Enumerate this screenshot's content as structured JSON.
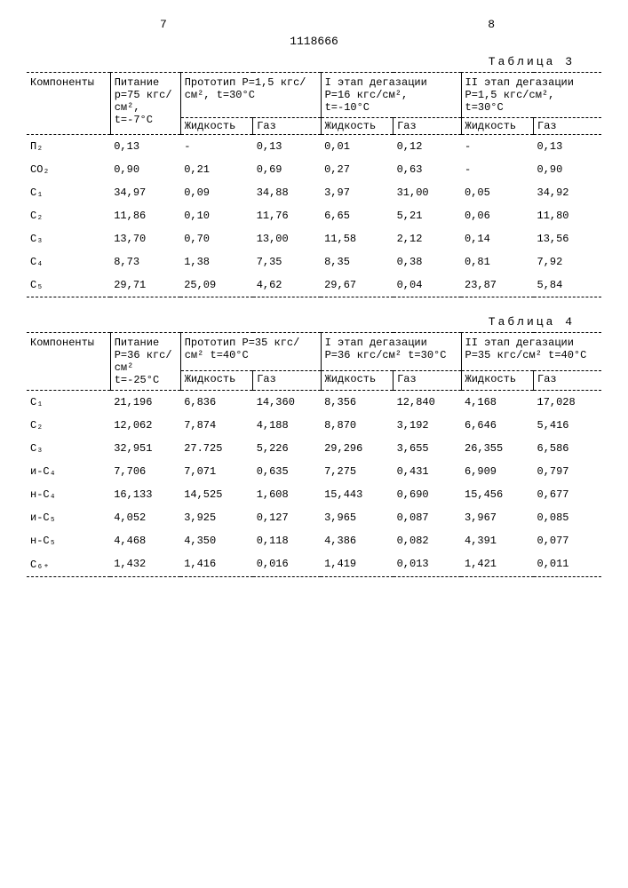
{
  "page": {
    "left_num": "7",
    "doc_num": "1118666",
    "right_num": "8"
  },
  "table3": {
    "title": "Таблица 3",
    "header": {
      "components": "Компоненты",
      "feed": "Питание p=75 кгс/см², t=-7°С",
      "proto": "Прототип P=1,5 кгс/см², t=30°С",
      "stage1": "I этап дегазации P=16 кгс/см², t=-10°С",
      "stage2": "II этап дегазации P=1,5 кгс/см², t=30°С",
      "liquid": "Жидкость",
      "gas": "Газ"
    },
    "rows": [
      {
        "c": "П₂",
        "p": "0,13",
        "pl": "-",
        "pg": "0,13",
        "s1l": "0,01",
        "s1g": "0,12",
        "s2l": "-",
        "s2g": "0,13"
      },
      {
        "c": "CO₂",
        "p": "0,90",
        "pl": "0,21",
        "pg": "0,69",
        "s1l": "0,27",
        "s1g": "0,63",
        "s2l": "-",
        "s2g": "0,90"
      },
      {
        "c": "C₁",
        "p": "34,97",
        "pl": "0,09",
        "pg": "34,88",
        "s1l": "3,97",
        "s1g": "31,00",
        "s2l": "0,05",
        "s2g": "34,92"
      },
      {
        "c": "C₂",
        "p": "11,86",
        "pl": "0,10",
        "pg": "11,76",
        "s1l": "6,65",
        "s1g": "5,21",
        "s2l": "0,06",
        "s2g": "11,80"
      },
      {
        "c": "C₃",
        "p": "13,70",
        "pl": "0,70",
        "pg": "13,00",
        "s1l": "11,58",
        "s1g": "2,12",
        "s2l": "0,14",
        "s2g": "13,56"
      },
      {
        "c": "C₄",
        "p": "8,73",
        "pl": "1,38",
        "pg": "7,35",
        "s1l": "8,35",
        "s1g": "0,38",
        "s2l": "0,81",
        "s2g": "7,92"
      },
      {
        "c": "C₅",
        "p": "29,71",
        "pl": "25,09",
        "pg": "4,62",
        "s1l": "29,67",
        "s1g": "0,04",
        "s2l": "23,87",
        "s2g": "5,84"
      }
    ]
  },
  "table4": {
    "title": "Таблица 4",
    "header": {
      "components": "Компоненты",
      "feed": "Питание P=36 кгс/см² t=-25°С",
      "proto": "Прототип P=35 кгс/см² t=40°С",
      "stage1": "I этап дегазации P=36 кгс/см² t=30°С",
      "stage2": "II этап дегазации P=35 кгс/см² t=40°С",
      "liquid": "Жидкость",
      "gas": "Газ"
    },
    "rows": [
      {
        "c": "C₁",
        "p": "21,196",
        "pl": "6,836",
        "pg": "14,360",
        "s1l": "8,356",
        "s1g": "12,840",
        "s2l": "4,168",
        "s2g": "17,028"
      },
      {
        "c": "C₂",
        "p": "12,062",
        "pl": "7,874",
        "pg": "4,188",
        "s1l": "8,870",
        "s1g": "3,192",
        "s2l": "6,646",
        "s2g": "5,416"
      },
      {
        "c": "C₃",
        "p": "32,951",
        "pl": "27.725",
        "pg": "5,226",
        "s1l": "29,296",
        "s1g": "3,655",
        "s2l": "26,355",
        "s2g": "6,586"
      },
      {
        "c": "и-C₄",
        "p": "7,706",
        "pl": "7,071",
        "pg": "0,635",
        "s1l": "7,275",
        "s1g": "0,431",
        "s2l": "6,909",
        "s2g": "0,797"
      },
      {
        "c": "н-C₄",
        "p": "16,133",
        "pl": "14,525",
        "pg": "1,608",
        "s1l": "15,443",
        "s1g": "0,690",
        "s2l": "15,456",
        "s2g": "0,677"
      },
      {
        "c": "и-C₅",
        "p": "4,052",
        "pl": "3,925",
        "pg": "0,127",
        "s1l": "3,965",
        "s1g": "0,087",
        "s2l": "3,967",
        "s2g": "0,085"
      },
      {
        "c": "н-C₅",
        "p": "4,468",
        "pl": "4,350",
        "pg": "0,118",
        "s1l": "4,386",
        "s1g": "0,082",
        "s2l": "4,391",
        "s2g": "0,077"
      },
      {
        "c": "C₆₊",
        "p": "1,432",
        "pl": "1,416",
        "pg": "0,016",
        "s1l": "1,419",
        "s1g": "0,013",
        "s2l": "1,421",
        "s2g": "0,011"
      }
    ]
  }
}
